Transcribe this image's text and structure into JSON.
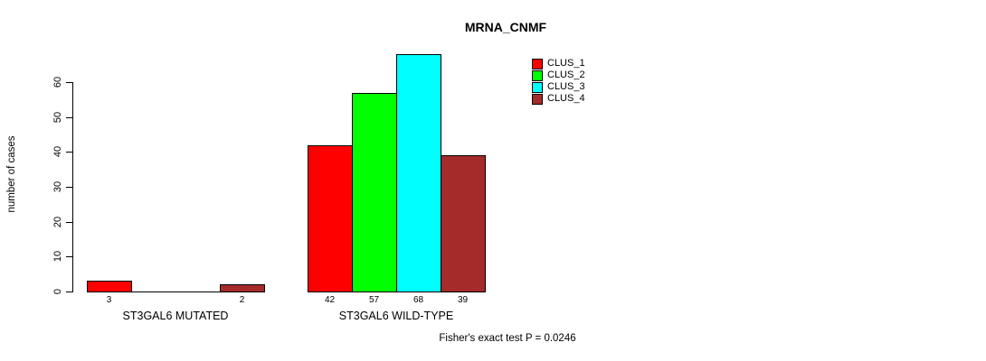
{
  "chart_data": {
    "type": "bar",
    "title": "MRNA_CNMF",
    "xlabel": "",
    "ylabel": "number of cases",
    "categories": [
      "ST3GAL6 MUTATED",
      "ST3GAL6 WILD-TYPE"
    ],
    "series": [
      {
        "name": "CLUS_1",
        "color": "#ff0000",
        "values": [
          3,
          42
        ]
      },
      {
        "name": "CLUS_2",
        "color": "#00ff00",
        "values": [
          0,
          57
        ]
      },
      {
        "name": "CLUS_3",
        "color": "#00ffff",
        "values": [
          0,
          68
        ]
      },
      {
        "name": "CLUS_4",
        "color": "#a52a2a",
        "values": [
          2,
          39
        ]
      }
    ],
    "value_labels": [
      [
        "3",
        "",
        "",
        "2"
      ],
      [
        "42",
        "57",
        "68",
        "39"
      ]
    ],
    "yticks": [
      0,
      10,
      20,
      30,
      40,
      50,
      60
    ],
    "ylim": [
      0,
      68
    ],
    "grid": false,
    "legend_position": "top-right",
    "annotation": "Fisher's exact test P = 0.0246",
    "colors": {
      "axis": "#000000",
      "bar_border": "#000000",
      "background": "#ffffff"
    }
  }
}
